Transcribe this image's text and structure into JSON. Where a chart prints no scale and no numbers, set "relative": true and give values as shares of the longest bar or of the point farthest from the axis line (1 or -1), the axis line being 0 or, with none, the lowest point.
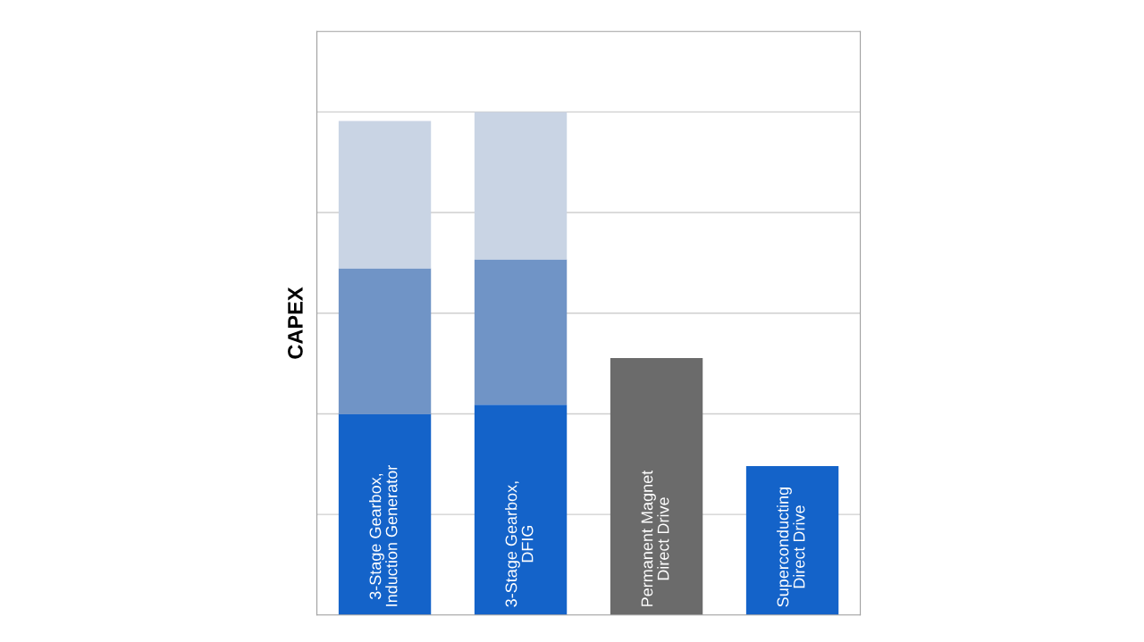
{
  "chart_data": {
    "type": "bar",
    "stacked": true,
    "relative": true,
    "ylabel": "CAPEX",
    "grid": "y",
    "categories": [
      "3-Stage Gearbox,\nInduction Generator",
      "3-Stage Gearbox,\nDFIG",
      "Permanent Magnet\nDirect Drive",
      "Superconducting\nDirect Drive"
    ],
    "series": [
      {
        "colors": [
          "#1463c9",
          "#1463c9",
          "#6b6b6b",
          "#1463c9"
        ],
        "values": [
          0.4,
          0.418,
          0.511,
          0.296
        ]
      },
      {
        "color": "#7094c6",
        "values": [
          0.289,
          0.289,
          null,
          null
        ]
      },
      {
        "color": "#c9d4e4",
        "values": [
          0.293,
          0.293,
          null,
          null
        ]
      }
    ]
  }
}
